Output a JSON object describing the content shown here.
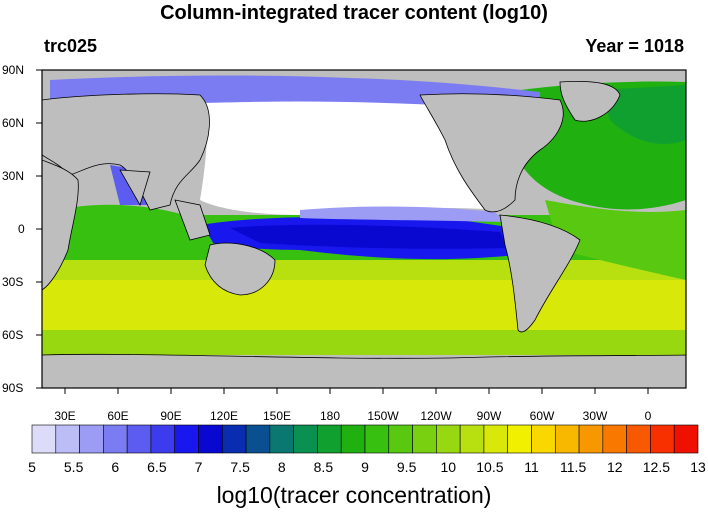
{
  "title": "Column-integrated tracer content (log10)",
  "left_label": "trc025",
  "right_label": "Year = 1018",
  "lat_labels": [
    "90N",
    "60N",
    "30N",
    "0",
    "30S",
    "60S",
    "90S"
  ],
  "lon_labels": [
    "30E",
    "60E",
    "90E",
    "120E",
    "150E",
    "180",
    "150W",
    "120W",
    "90W",
    "60W",
    "30W",
    "0"
  ],
  "colorbar": {
    "title": "log10(tracer concentration)",
    "ticks": [
      "5",
      "5.5",
      "6",
      "6.5",
      "7",
      "7.5",
      "8",
      "8.5",
      "9",
      "9.5",
      "10",
      "10.5",
      "11",
      "11.5",
      "12",
      "12.5",
      "13"
    ],
    "colors": [
      "#dcdcf8",
      "#bcbcf6",
      "#9c9cf4",
      "#7c7cf2",
      "#5c5cf0",
      "#3c3cee",
      "#1818ee",
      "#0808d0",
      "#0a2cb0",
      "#0a5090",
      "#0a7870",
      "#0a9050",
      "#10a030",
      "#20b010",
      "#38c010",
      "#58c810",
      "#78d010",
      "#98d810",
      "#b8e010",
      "#d8e808",
      "#f0f000",
      "#f8d800",
      "#f8b800",
      "#f89800",
      "#f87800",
      "#f85800",
      "#f83000",
      "#f01000"
    ]
  },
  "map_colors": {
    "land": "#bebebe",
    "ocean_white": "#ffffff",
    "low": "#3c3cee",
    "mid": "#20b010",
    "high": "#d8e808"
  }
}
